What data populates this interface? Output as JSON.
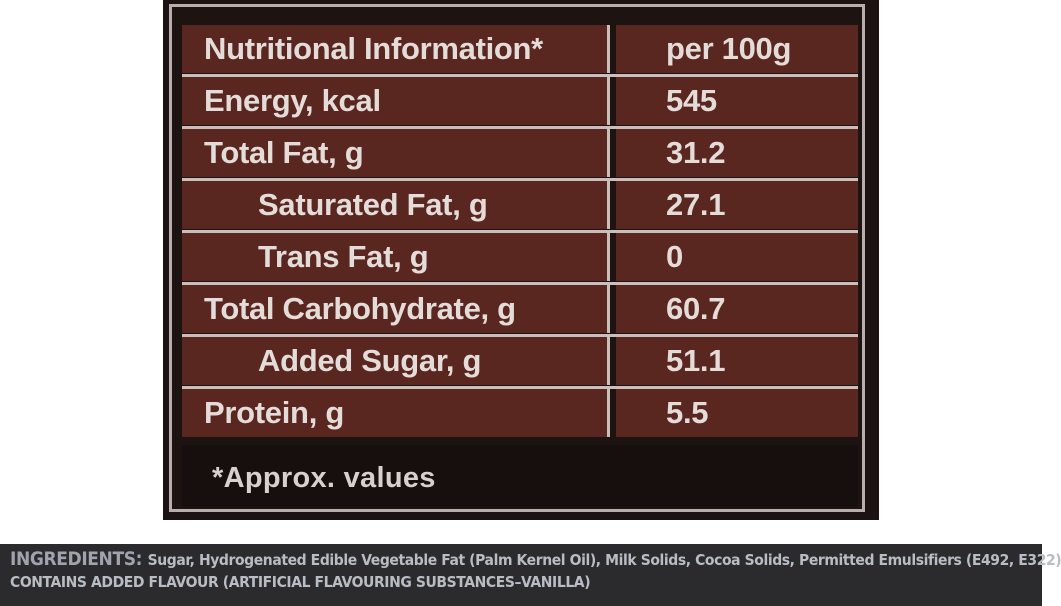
{
  "table": {
    "header": {
      "label": "Nutritional Information*",
      "value": "per 100g"
    },
    "rows": [
      {
        "label": "Energy, kcal",
        "value": "545",
        "indent": false
      },
      {
        "label": "Total Fat, g",
        "value": "31.2",
        "indent": false
      },
      {
        "label": "Saturated Fat, g",
        "value": "27.1",
        "indent": true
      },
      {
        "label": "Trans Fat, g",
        "value": "0",
        "indent": true
      },
      {
        "label": "Total Carbohydrate, g",
        "value": "60.7",
        "indent": false
      },
      {
        "label": "Added Sugar, g",
        "value": "51.1",
        "indent": true
      },
      {
        "label": "Protein, g",
        "value": "5.5",
        "indent": false
      }
    ],
    "footnote": "*Approx. values"
  },
  "ingredients": {
    "heading": "INGREDIENTS:",
    "text": "Sugar, Hydrogenated Edible Vegetable Fat (Palm Kernel Oil), Milk Solids, Cocoa Solids, Permitted Emulsifiers (E492, E322)",
    "note": "CONTAINS ADDED FLAVOUR (ARTIFICIAL FLAVOURING SUBSTANCES–VANILLA)"
  },
  "colors": {
    "cell_background": "#5a2620",
    "panel_background": "#1b1211",
    "grid_lines": "#c9bebb",
    "text": "#e4dcd9",
    "ingredients_strip": "#2b2b2e"
  }
}
